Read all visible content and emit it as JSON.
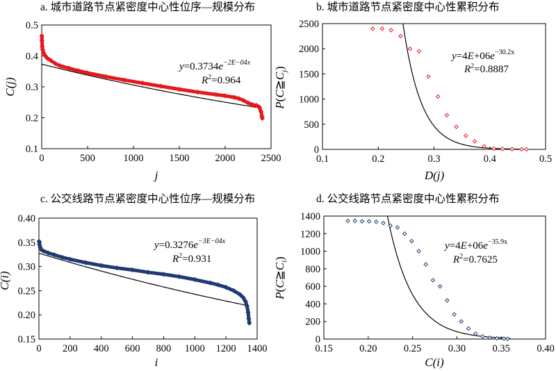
{
  "chart_data": [
    {
      "panel": "a",
      "type": "scatter",
      "title": "a. 城市道路节点紧密度中心性位序—规模分布",
      "xlabel": "j",
      "ylabel": "C(j)",
      "xlim": [
        0,
        2500
      ],
      "ylim": [
        0.1,
        0.5
      ],
      "xticks": [
        "0",
        "500",
        "1000",
        "1500",
        "2000",
        "2500"
      ],
      "yticks": [
        "0.1",
        "0.2",
        "0.3",
        "0.4",
        "0.5"
      ],
      "marker": "diamond",
      "color": "#e8161b",
      "fit_color": "#000000",
      "series": [
        {
          "x": [
            1,
            3,
            6,
            10,
            20,
            40,
            60,
            100,
            150,
            200,
            300,
            400,
            500,
            700,
            900,
            1100,
            1300,
            1500,
            1700,
            1900,
            2000,
            2100,
            2150,
            2200,
            2250,
            2300,
            2340,
            2370,
            2390,
            2400,
            2405
          ],
          "y": [
            0.465,
            0.45,
            0.43,
            0.42,
            0.41,
            0.4,
            0.393,
            0.385,
            0.375,
            0.368,
            0.36,
            0.352,
            0.345,
            0.333,
            0.322,
            0.312,
            0.302,
            0.292,
            0.283,
            0.275,
            0.271,
            0.266,
            0.262,
            0.256,
            0.248,
            0.242,
            0.24,
            0.235,
            0.22,
            0.205,
            0.198
          ]
        }
      ],
      "fit": {
        "equation": "y=0.3734e^{-2E-04x}",
        "r2": "R²=0.964",
        "a": 0.3734,
        "b": -0.0002,
        "x_range": [
          0,
          2400
        ]
      },
      "annotation": {
        "eq_prefix": "y",
        "eq_mid": "=0.3734",
        "eq_base": "e",
        "eq_exp": "−2E−04x",
        "r2_prefix": "R",
        "r2_sup": "2",
        "r2_rest": "=0.964"
      }
    },
    {
      "panel": "b",
      "type": "scatter",
      "title": "b. 城市道路节点紧密度中心性累积分布",
      "xlabel": "D(j)",
      "ylabel": "P(C≧Cj)",
      "xlim": [
        0.1,
        0.5
      ],
      "ylim": [
        0,
        2500
      ],
      "xticks": [
        "0.1",
        "0.2",
        "0.3",
        "0.4",
        "0.5"
      ],
      "yticks": [
        "0",
        "500",
        "1000",
        "1500",
        "2000",
        "2500"
      ],
      "marker": "diamond-open",
      "color": "#e8161b",
      "fit_color": "#000000",
      "series": [
        {
          "x": [
            0.19,
            0.207,
            0.223,
            0.24,
            0.257,
            0.273,
            0.29,
            0.307,
            0.323,
            0.34,
            0.357,
            0.373,
            0.39,
            0.407,
            0.423,
            0.44,
            0.457,
            0.466
          ],
          "y": [
            2400,
            2400,
            2370,
            2250,
            2000,
            1950,
            1450,
            1050,
            680,
            450,
            270,
            160,
            60,
            15,
            8,
            4,
            2,
            0
          ]
        }
      ],
      "fit": {
        "equation": "y=4E+06e^{-30.2x}",
        "r2": "R²=0.8887",
        "a": 4000000,
        "b": -30.2,
        "x_range": [
          0.2,
          0.46
        ]
      },
      "annotation": {
        "eq_prefix": "y",
        "eq_mid": "=4",
        "eq_e": "E",
        "eq_after": "+06",
        "eq_base": "e",
        "eq_exp": "−30.2x",
        "r2_prefix": "R",
        "r2_sup": "2",
        "r2_rest": "=0.8887",
        "ylab_p": "P",
        "ylab_open": "(",
        "ylab_c": "C",
        "ylab_rel": "≧",
        "ylab_c2": "C",
        "ylab_sub": "j",
        "ylab_close": ")"
      }
    },
    {
      "panel": "c",
      "type": "scatter",
      "title": "c. 公交线路节点紧密度中心性位序—规模分布",
      "xlabel": "i",
      "ylabel": "C(i)",
      "xlim": [
        0,
        1400
      ],
      "ylim": [
        0.15,
        0.4
      ],
      "xticks": [
        "0",
        "200",
        "400",
        "600",
        "800",
        "1000",
        "1200",
        "1400"
      ],
      "yticks": [
        "0.15",
        "0.20",
        "0.25",
        "0.30",
        "0.35",
        "0.40"
      ],
      "marker": "diamond",
      "color": "#1f3a73",
      "fit_color": "#000000",
      "series": [
        {
          "x": [
            1,
            4,
            8,
            15,
            30,
            60,
            100,
            150,
            200,
            300,
            400,
            500,
            600,
            700,
            800,
            900,
            1000,
            1100,
            1150,
            1200,
            1250,
            1290,
            1310,
            1325,
            1335,
            1342,
            1346,
            1350
          ],
          "y": [
            0.352,
            0.345,
            0.34,
            0.335,
            0.332,
            0.328,
            0.324,
            0.319,
            0.315,
            0.308,
            0.302,
            0.297,
            0.293,
            0.288,
            0.284,
            0.279,
            0.273,
            0.266,
            0.262,
            0.257,
            0.25,
            0.242,
            0.236,
            0.228,
            0.218,
            0.205,
            0.192,
            0.183
          ]
        }
      ],
      "fit": {
        "equation": "y=0.3276e^{-3E-04x}",
        "r2": "R²=0.931",
        "a": 0.3276,
        "b": -0.0003,
        "x_range": [
          0,
          1340
        ]
      },
      "annotation": {
        "eq_prefix": "y",
        "eq_mid": "=0.3276",
        "eq_base": "e",
        "eq_exp": "−3E−04x",
        "r2_prefix": "R",
        "r2_sup": "2",
        "r2_rest": "=0.931"
      }
    },
    {
      "panel": "d",
      "type": "scatter",
      "title": "d. 公交线路节点紧密度中心性累积分布",
      "xlabel": "C(i)",
      "ylabel": "P(C≧Ci)",
      "xlim": [
        0.15,
        0.4
      ],
      "ylim": [
        0,
        1400
      ],
      "xticks": [
        "0.15",
        "0.20",
        "0.25",
        "0.30",
        "0.35",
        "0.40"
      ],
      "yticks": [
        "0",
        "200",
        "400",
        "600",
        "800",
        "1000",
        "1200",
        "1400"
      ],
      "marker": "diamond-open",
      "color": "#1f3a73",
      "fit_color": "#000000",
      "series": [
        {
          "x": [
            0.177,
            0.185,
            0.193,
            0.201,
            0.209,
            0.217,
            0.225,
            0.233,
            0.241,
            0.249,
            0.257,
            0.265,
            0.273,
            0.281,
            0.289,
            0.297,
            0.305,
            0.313,
            0.321,
            0.329,
            0.337,
            0.345,
            0.353,
            0.357
          ],
          "y": [
            1345,
            1345,
            1340,
            1340,
            1335,
            1320,
            1290,
            1270,
            1200,
            1115,
            1000,
            850,
            670,
            600,
            440,
            280,
            200,
            120,
            60,
            30,
            15,
            8,
            4,
            2
          ]
        }
      ],
      "fit": {
        "equation": "y=4E+06e^{-35.9x}",
        "r2": "R²=0.7625",
        "a": 4000000,
        "b": -35.9,
        "x_range": [
          0.2,
          0.36
        ]
      },
      "annotation": {
        "eq_prefix": "y",
        "eq_mid": "=4",
        "eq_e": "E",
        "eq_after": "+06",
        "eq_base": "e",
        "eq_exp": "−35.9x",
        "r2_prefix": "R",
        "r2_sup": "2",
        "r2_rest": "=0.7625",
        "ylab_p": "P",
        "ylab_open": "(",
        "ylab_c": "C",
        "ylab_rel": "≧",
        "ylab_c2": "C",
        "ylab_sub": "i",
        "ylab_close": ")"
      }
    }
  ]
}
